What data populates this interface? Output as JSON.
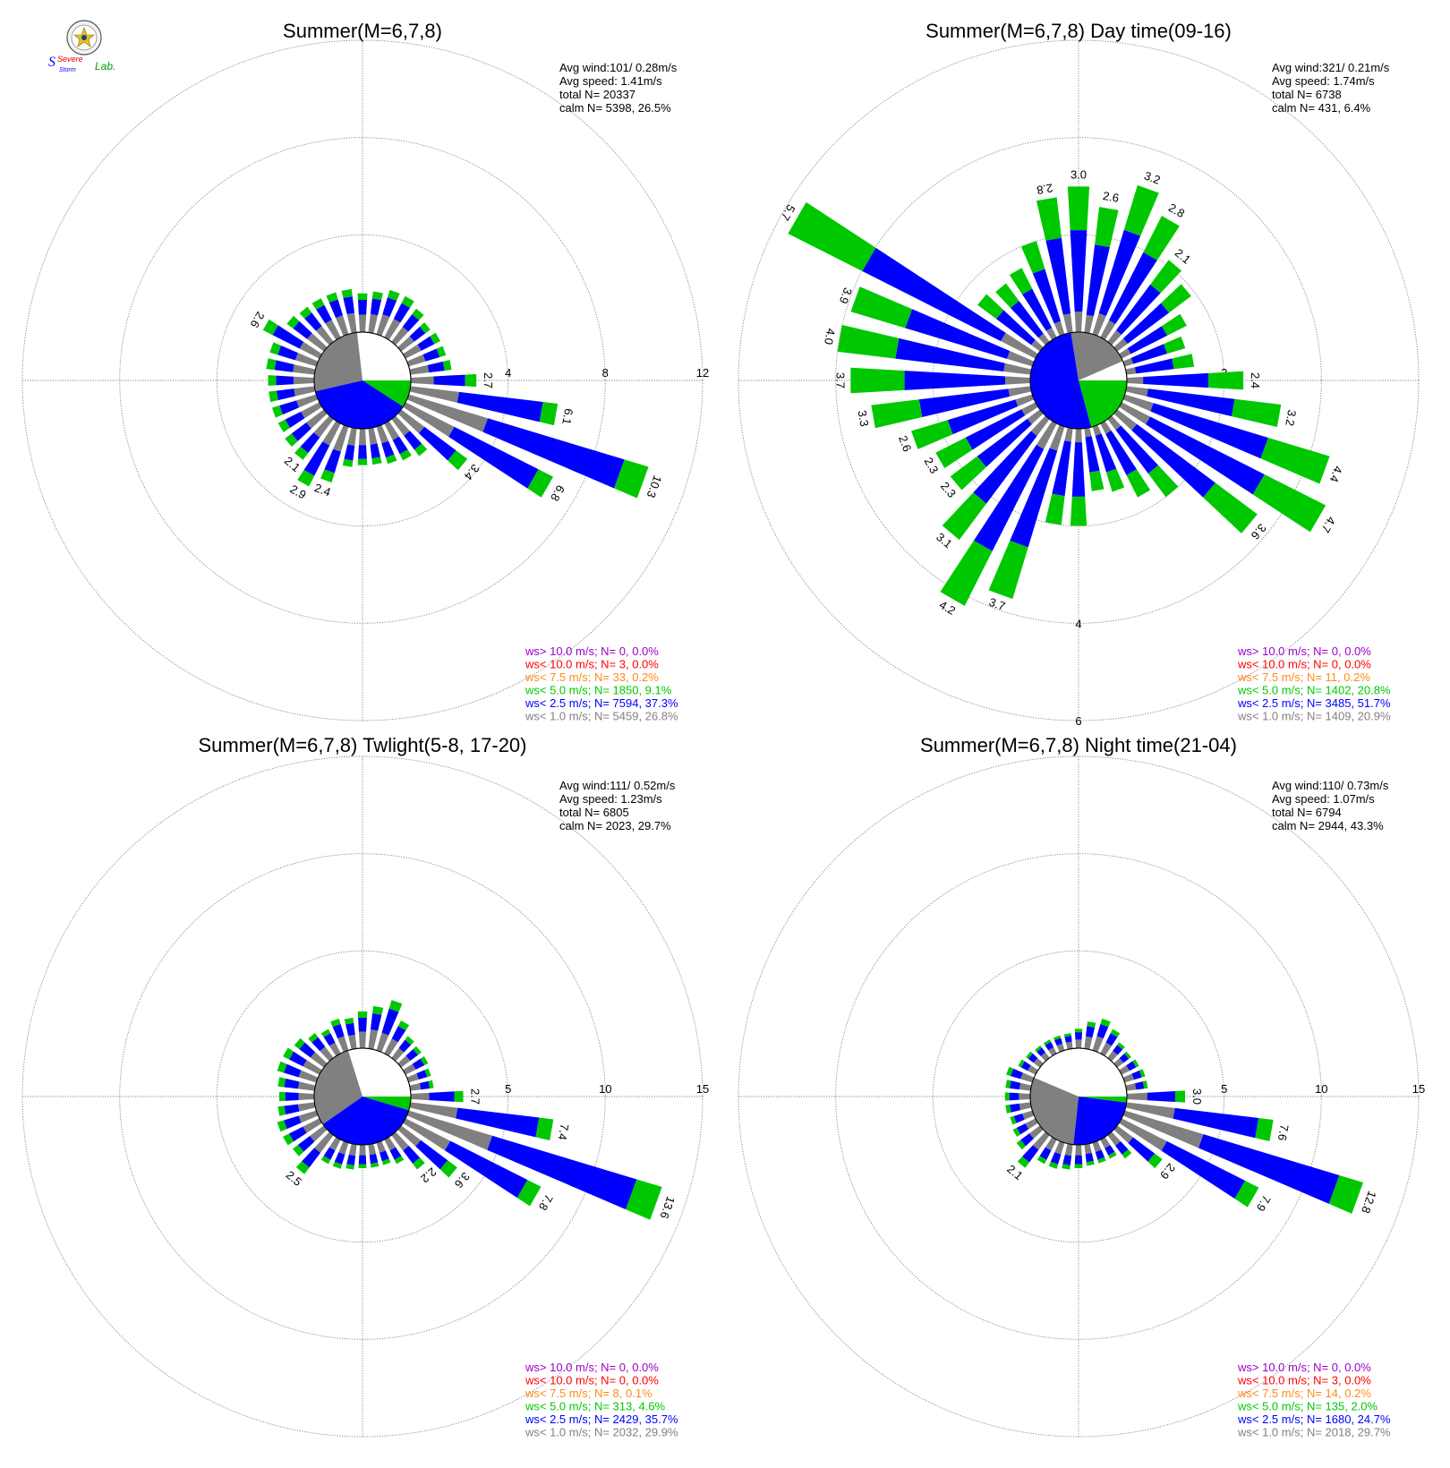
{
  "logo": {
    "text_top": "Severe",
    "text_mid": "Storm",
    "text_lab": "Lab."
  },
  "colors": {
    "calm": "#808080",
    "lt1": "#808080",
    "lt2_5": "#0000ff",
    "lt5": "#00c800",
    "lt7_5": "#ff8c1a",
    "lt10": "#ff0000",
    "gt10": "#a000c8",
    "grid": "#808080"
  },
  "chart_data": [
    {
      "type": "windrose",
      "title": "Summer(M=6,7,8)",
      "stats": {
        "avg_wind": "Avg wind:101/ 0.28m/s",
        "avg_speed": "Avg speed: 1.41m/s",
        "total": "total N=       20337",
        "calm": "calm N=   5398,  26.5%"
      },
      "rings": [
        4,
        8,
        12
      ],
      "ring_labels": [
        "4",
        "8",
        "12"
      ],
      "rmax": 12,
      "calm_pct": 26.5,
      "legend": [
        {
          "text": "ws> 10.0 m/s; N=     0,  0.0%",
          "color": "#a000c8"
        },
        {
          "text": "ws< 10.0 m/s; N=     3,  0.0%",
          "color": "#ff0000"
        },
        {
          "text": "ws<  7.5 m/s; N=    33,  0.2%",
          "color": "#ff8c1a"
        },
        {
          "text": "ws<  5.0 m/s; N=  1850,  9.1%",
          "color": "#00c800"
        },
        {
          "text": "ws<  2.5 m/s; N=  7594, 37.3%",
          "color": "#0000ff"
        },
        {
          "text": "ws<  1.0 m/s; N=  5459, 26.8%",
          "color": "#808080"
        }
      ],
      "directions": [
        0,
        10,
        20,
        30,
        40,
        50,
        60,
        70,
        80,
        90,
        100,
        110,
        120,
        130,
        140,
        150,
        160,
        170,
        180,
        190,
        200,
        210,
        220,
        230,
        240,
        250,
        260,
        270,
        280,
        290,
        300,
        310,
        320,
        330,
        340,
        350
      ],
      "totals": [
        1.6,
        1.7,
        1.9,
        1.9,
        1.7,
        1.5,
        1.6,
        1.6,
        1.7,
        2.7,
        6.1,
        10.3,
        6.8,
        3.4,
        1.9,
        1.7,
        1.6,
        1.5,
        1.5,
        1.6,
        2.4,
        2.9,
        2.1,
        2.0,
        1.9,
        1.9,
        1.9,
        1.9,
        2.0,
        2.0,
        2.6,
        1.9,
        1.8,
        1.8,
        1.8,
        1.8
      ],
      "labels": {
        "90": "2.7",
        "100": "6.1",
        "110": "10.3",
        "120": "6.8",
        "130": "3.4",
        "200": "2.4",
        "210": "2.9",
        "220": "2.1",
        "300": "2.6"
      },
      "pie": [
        {
          "name": "ws< 5.0 m/s",
          "pct": 9.1,
          "color": "#00c800"
        },
        {
          "name": "ws< 2.5 m/s",
          "pct": 37.3,
          "color": "#0000ff"
        },
        {
          "name": "ws< 1.0 m/s",
          "pct": 26.8,
          "color": "#808080"
        }
      ]
    },
    {
      "type": "windrose",
      "title": "Summer(M=6,7,8) Day time(09-16)",
      "stats": {
        "avg_wind": "Avg wind:321/ 0.21m/s",
        "avg_speed": "Avg speed: 1.74m/s",
        "total": "total N=       6738",
        "calm": "calm N=     431,   6.4%"
      },
      "rings": [
        2,
        4,
        6
      ],
      "ring_labels": [
        "2",
        "4",
        "6"
      ],
      "rmax": 6,
      "calm_pct": 6.4,
      "legend": [
        {
          "text": "ws> 10.0 m/s; N=     0,  0.0%",
          "color": "#a000c8"
        },
        {
          "text": "ws< 10.0 m/s; N=     0,  0.0%",
          "color": "#ff0000"
        },
        {
          "text": "ws<  7.5 m/s; N=    11,  0.2%",
          "color": "#ff8c1a"
        },
        {
          "text": "ws<  5.0 m/s; N=  1402, 20.8%",
          "color": "#00c800"
        },
        {
          "text": "ws<  2.5 m/s; N=  3485, 51.7%",
          "color": "#0000ff"
        },
        {
          "text": "ws<  1.0 m/s; N=  1409, 20.9%",
          "color": "#808080"
        }
      ],
      "directions": [
        0,
        10,
        20,
        30,
        40,
        50,
        60,
        70,
        80,
        90,
        100,
        110,
        120,
        130,
        140,
        150,
        160,
        170,
        180,
        190,
        200,
        210,
        220,
        230,
        240,
        250,
        260,
        270,
        280,
        290,
        300,
        310,
        320,
        330,
        340,
        350
      ],
      "totals": [
        3.0,
        2.6,
        3.2,
        2.8,
        2.1,
        1.9,
        1.5,
        1.3,
        1.4,
        2.4,
        3.2,
        4.4,
        4.7,
        3.6,
        2.0,
        1.7,
        1.4,
        1.3,
        2.0,
        2.0,
        3.7,
        4.2,
        3.1,
        2.3,
        2.3,
        2.6,
        3.3,
        3.7,
        4.0,
        3.9,
        5.7,
        1.6,
        1.5,
        1.6,
        2.0,
        2.8
      ],
      "labels": {
        "0": "3.0",
        "10": "2.6",
        "20": "3.2",
        "30": "2.8",
        "40": "2.1",
        "90": "2.4",
        "100": "3.2",
        "110": "4.4",
        "120": "4.7",
        "130": "3.6",
        "200": "3.7",
        "210": "4.2",
        "220": "3.1",
        "230": "2.3",
        "240": "2.3",
        "250": "2.6",
        "260": "3.3",
        "270": "3.7",
        "280": "4.0",
        "290": "3.9",
        "300": "5.7",
        "350": "2.8"
      },
      "pie": [
        {
          "name": "ws< 5.0 m/s",
          "pct": 20.8,
          "color": "#00c800"
        },
        {
          "name": "ws< 2.5 m/s",
          "pct": 51.7,
          "color": "#0000ff"
        },
        {
          "name": "ws< 1.0 m/s",
          "pct": 20.9,
          "color": "#808080"
        }
      ]
    },
    {
      "type": "windrose",
      "title": "Summer(M=6,7,8) Twlight(5-8, 17-20)",
      "stats": {
        "avg_wind": "Avg wind:111/ 0.52m/s",
        "avg_speed": "Avg speed: 1.23m/s",
        "total": "total N=       6805",
        "calm": "calm N=   2023,  29.7%"
      },
      "rings": [
        5,
        10,
        15
      ],
      "ring_labels": [
        "5",
        "10",
        "15"
      ],
      "rmax": 15,
      "calm_pct": 29.7,
      "legend": [
        {
          "text": "ws> 10.0 m/s; N=     0,  0.0%",
          "color": "#a000c8"
        },
        {
          "text": "ws< 10.0 m/s; N=     0,  0.0%",
          "color": "#ff0000"
        },
        {
          "text": "ws<  7.5 m/s; N=     8,  0.1%",
          "color": "#ff8c1a"
        },
        {
          "text": "ws<  5.0 m/s; N=   313,  4.6%",
          "color": "#00c800"
        },
        {
          "text": "ws<  2.5 m/s; N=  2429, 35.7%",
          "color": "#0000ff"
        },
        {
          "text": "ws<  1.0 m/s; N=  2032, 29.9%",
          "color": "#808080"
        }
      ],
      "directions": [
        0,
        10,
        20,
        30,
        40,
        50,
        60,
        70,
        80,
        90,
        100,
        110,
        120,
        130,
        140,
        150,
        160,
        170,
        180,
        190,
        200,
        210,
        220,
        230,
        240,
        250,
        260,
        270,
        280,
        290,
        300,
        310,
        320,
        330,
        340,
        350
      ],
      "totals": [
        1.9,
        2.2,
        2.7,
        1.9,
        1.4,
        1.3,
        1.3,
        1.2,
        1.2,
        2.7,
        7.4,
        13.6,
        7.8,
        3.6,
        2.2,
        1.4,
        1.2,
        1.2,
        1.2,
        1.3,
        1.4,
        1.4,
        2.5,
        2.0,
        2.1,
        2.1,
        1.9,
        1.8,
        1.9,
        2.1,
        2.1,
        1.9,
        1.6,
        1.4,
        1.7,
        1.6
      ],
      "labels": {
        "90": "2.7",
        "100": "7.4",
        "110": "13.6",
        "120": "7.8",
        "130": "3.6",
        "140": "2.2",
        "220": "2.5"
      },
      "pie": [
        {
          "name": "ws< 5.0 m/s",
          "pct": 4.6,
          "color": "#00c800"
        },
        {
          "name": "ws< 2.5 m/s",
          "pct": 35.7,
          "color": "#0000ff"
        },
        {
          "name": "ws< 1.0 m/s",
          "pct": 29.9,
          "color": "#808080"
        }
      ]
    },
    {
      "type": "windrose",
      "title": "Summer(M=6,7,8) Night time(21-04)",
      "stats": {
        "avg_wind": "Avg wind:110/ 0.73m/s",
        "avg_speed": "Avg speed: 1.07m/s",
        "total": "total N=       6794",
        "calm": "calm N=   2944,  43.3%"
      },
      "rings": [
        5,
        10,
        15
      ],
      "ring_labels": [
        "5",
        "10",
        "15"
      ],
      "rmax": 15,
      "calm_pct": 43.3,
      "legend": [
        {
          "text": "ws> 10.0 m/s; N=     0,  0.0%",
          "color": "#a000c8"
        },
        {
          "text": "ws< 10.0 m/s; N=     3,  0.0%",
          "color": "#ff0000"
        },
        {
          "text": "ws<  7.5 m/s; N=    14,  0.2%",
          "color": "#ff8c1a"
        },
        {
          "text": "ws<  5.0 m/s; N=   135,  2.0%",
          "color": "#00c800"
        },
        {
          "text": "ws<  2.5 m/s; N=  1680, 24.7%",
          "color": "#0000ff"
        },
        {
          "text": "ws<  1.0 m/s; N=  2018, 29.7%",
          "color": "#808080"
        }
      ],
      "directions": [
        0,
        10,
        20,
        30,
        40,
        50,
        60,
        70,
        80,
        90,
        100,
        110,
        120,
        130,
        140,
        150,
        160,
        170,
        180,
        190,
        200,
        210,
        220,
        230,
        240,
        250,
        260,
        270,
        280,
        290,
        300,
        310,
        320,
        330,
        340,
        350
      ],
      "totals": [
        1.0,
        1.4,
        1.7,
        1.4,
        1.0,
        0.9,
        1.0,
        1.1,
        1.1,
        3.0,
        7.6,
        12.8,
        7.9,
        2.9,
        1.5,
        1.1,
        1.1,
        1.1,
        1.2,
        1.3,
        1.4,
        1.4,
        2.1,
        1.5,
        1.3,
        1.2,
        1.3,
        1.3,
        1.3,
        1.4,
        1.0,
        0.9,
        0.8,
        0.8,
        0.8,
        0.8
      ],
      "labels": {
        "90": "3.0",
        "100": "7.6",
        "110": "12.8",
        "120": "7.9",
        "130": "2.9",
        "220": "2.1"
      },
      "pie": [
        {
          "name": "ws< 5.0 m/s",
          "pct": 2.0,
          "color": "#00c800"
        },
        {
          "name": "ws< 2.5 m/s",
          "pct": 24.7,
          "color": "#0000ff"
        },
        {
          "name": "ws< 1.0 m/s",
          "pct": 29.7,
          "color": "#808080"
        }
      ]
    }
  ]
}
